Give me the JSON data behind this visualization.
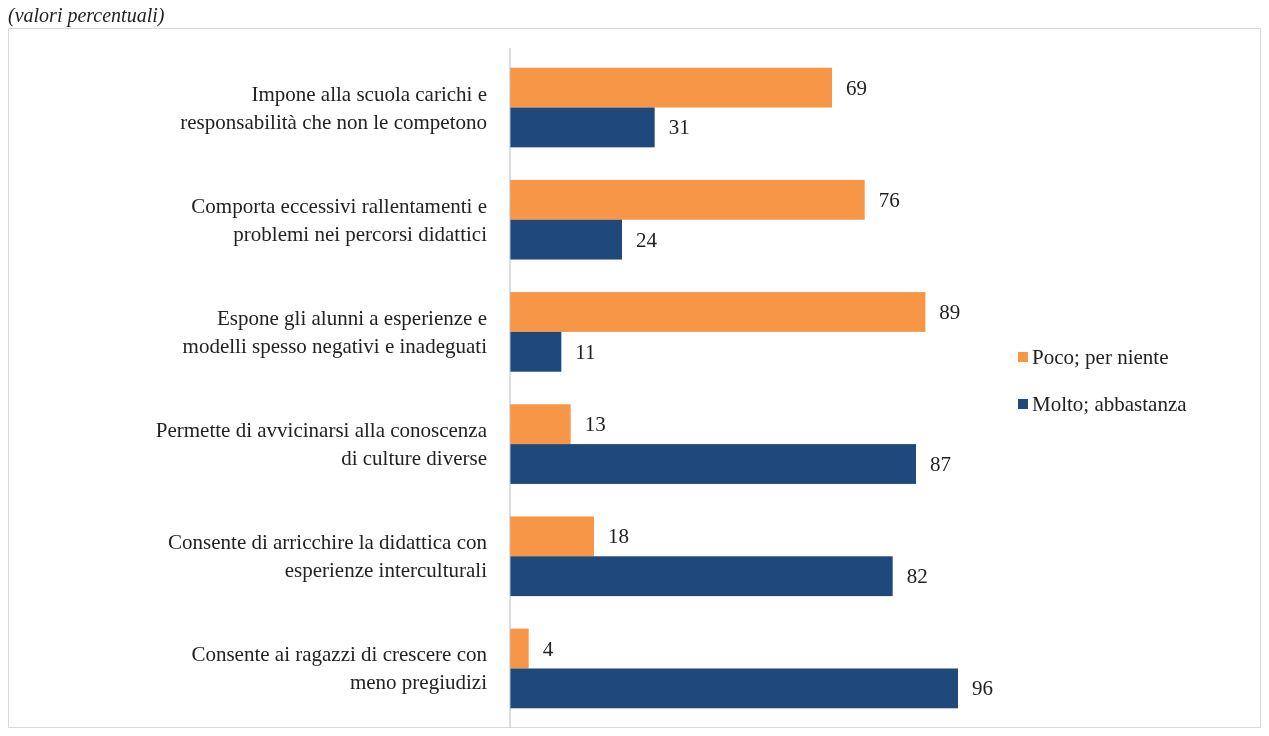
{
  "chart_data": {
    "type": "bar",
    "orientation": "horizontal",
    "subtitle": "(valori percentuali)",
    "categories": [
      "Impone alla scuola carichi e responsabilità che non le competono",
      "Comporta eccessivi rallentamenti e problemi nei percorsi didattici",
      "Espone gli alunni a esperienze e modelli spesso negativi e inadeguati",
      "Permette di avvicinarsi alla conoscenza di culture diverse",
      "Consente di arricchire la didattica con esperienze interculturali",
      "Consente ai ragazzi di crescere con meno pregiudizi"
    ],
    "series": [
      {
        "name": "Poco; per niente",
        "color": "#f79646",
        "values": [
          69,
          76,
          89,
          13,
          18,
          4
        ]
      },
      {
        "name": "Molto; abbastanza",
        "color": "#1f497d",
        "values": [
          31,
          24,
          11,
          87,
          82,
          96
        ]
      }
    ],
    "data_labels": true,
    "legend": "right",
    "grid": false
  }
}
